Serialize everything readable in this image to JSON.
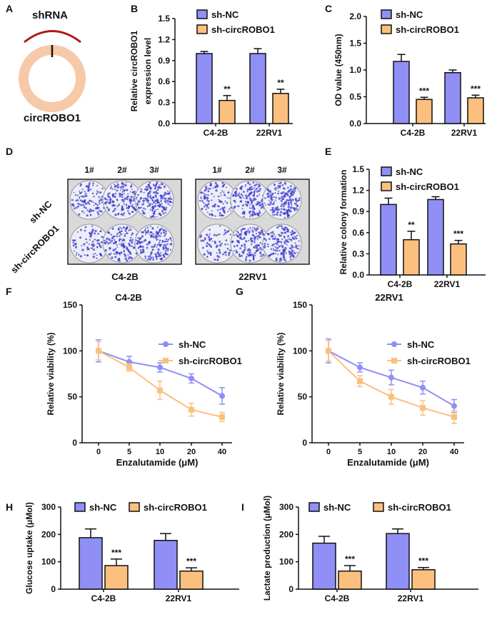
{
  "colors": {
    "sh_nc": "#8f8ff5",
    "sh_circ": "#fbc07e",
    "ring": "#f6c9a8",
    "arc": "#b01818",
    "stain": "#3a3ad0"
  },
  "panel_a": {
    "letter": "A",
    "label_top": "shRNA",
    "label_bottom": "circROBO1"
  },
  "panel_d": {
    "letter": "D",
    "columns": [
      "1#",
      "2#",
      "3#"
    ],
    "rows": [
      "sh-NC",
      "sh-circROBO1"
    ],
    "plates": [
      "C4-2B",
      "22RV1"
    ]
  },
  "chart_data": [
    {
      "id": "B",
      "letter": "B",
      "type": "bar",
      "categories": [
        "C4-2B",
        "22RV1"
      ],
      "ylabel": [
        "Relative circROBO1",
        "expression level"
      ],
      "ylim": [
        0,
        1.5
      ],
      "yticks": [
        "0.0",
        "0.3",
        "0.6",
        "0.9",
        "1.2",
        "1.5"
      ],
      "tickvals": [
        0,
        0.3,
        0.6,
        0.9,
        1.2,
        1.5
      ],
      "series": [
        {
          "name": "sh-NC",
          "values": [
            1.0,
            1.0
          ],
          "errors": [
            0.03,
            0.07
          ]
        },
        {
          "name": "sh-circROBO1",
          "values": [
            0.33,
            0.43
          ],
          "errors": [
            0.07,
            0.06
          ],
          "significance": [
            "**",
            "**"
          ]
        }
      ]
    },
    {
      "id": "C",
      "letter": "C",
      "type": "bar",
      "categories": [
        "C4-2B",
        "22RV1"
      ],
      "ylabel": [
        "OD value (450nm)"
      ],
      "ylim": [
        0,
        2.0
      ],
      "yticks": [
        "0.0",
        "0.5",
        "1.0",
        "1.5",
        "2.0"
      ],
      "tickvals": [
        0,
        0.5,
        1.0,
        1.5,
        2.0
      ],
      "series": [
        {
          "name": "sh-NC",
          "values": [
            1.16,
            0.95
          ],
          "errors": [
            0.13,
            0.05
          ]
        },
        {
          "name": "sh-circROBO1",
          "values": [
            0.45,
            0.48
          ],
          "errors": [
            0.04,
            0.05
          ],
          "significance": [
            "***",
            "***"
          ]
        }
      ]
    },
    {
      "id": "E",
      "letter": "E",
      "type": "bar",
      "categories": [
        "C4-2B",
        "22RV1"
      ],
      "ylabel": [
        "Relative colony formation"
      ],
      "ylim": [
        0,
        1.5
      ],
      "yticks": [
        "0.0",
        "0.3",
        "0.6",
        "0.9",
        "1.2",
        "1.5"
      ],
      "tickvals": [
        0,
        0.3,
        0.6,
        0.9,
        1.2,
        1.5
      ],
      "series": [
        {
          "name": "sh-NC",
          "values": [
            1.0,
            1.07
          ],
          "errors": [
            0.09,
            0.04
          ]
        },
        {
          "name": "sh-circROBO1",
          "values": [
            0.5,
            0.44
          ],
          "errors": [
            0.12,
            0.05
          ],
          "significance": [
            "**",
            "***"
          ]
        }
      ]
    },
    {
      "id": "F",
      "letter": "F",
      "type": "line",
      "title": "C4-2B",
      "categories": [
        "0",
        "5",
        "10",
        "20",
        "40"
      ],
      "xlabel": "Enzalutamide (μM)",
      "ylabel": [
        "Relative viability (%)"
      ],
      "ylim": [
        0,
        150
      ],
      "yticks": [
        "0",
        "50",
        "100",
        "150"
      ],
      "tickvals": [
        0,
        50,
        100,
        150
      ],
      "series": [
        {
          "name": "sh-NC",
          "values": [
            100,
            88,
            82,
            70,
            51
          ],
          "errors": [
            12,
            6,
            5,
            5,
            9
          ]
        },
        {
          "name": "sh-circROBO1",
          "values": [
            100,
            82,
            57,
            36,
            28
          ],
          "errors": [
            10,
            4,
            10,
            7,
            5
          ]
        }
      ]
    },
    {
      "id": "G",
      "letter": "G",
      "type": "line",
      "title": "22RV1",
      "categories": [
        "0",
        "5",
        "10",
        "20",
        "40"
      ],
      "xlabel": "Enzalutamide (μM)",
      "ylabel": [
        "Relative viability (%)"
      ],
      "ylim": [
        0,
        150
      ],
      "yticks": [
        "0",
        "50",
        "100",
        "150"
      ],
      "tickvals": [
        0,
        50,
        100,
        150
      ],
      "series": [
        {
          "name": "sh-NC",
          "values": [
            100,
            82,
            71,
            60,
            40
          ],
          "errors": [
            13,
            5,
            8,
            7,
            7
          ]
        },
        {
          "name": "sh-circROBO1",
          "values": [
            100,
            67,
            50,
            38,
            28
          ],
          "errors": [
            11,
            6,
            8,
            8,
            7
          ]
        }
      ]
    },
    {
      "id": "H",
      "letter": "H",
      "type": "bar",
      "categories": [
        "C4-2B",
        "22RV1"
      ],
      "ylabel": [
        "Glucose uptake (μMol)"
      ],
      "ylim": [
        0,
        300
      ],
      "yticks": [
        "0",
        "100",
        "200",
        "300"
      ],
      "tickvals": [
        0,
        100,
        200,
        300
      ],
      "series": [
        {
          "name": "sh-NC",
          "values": [
            188,
            178
          ],
          "errors": [
            32,
            25
          ]
        },
        {
          "name": "sh-circROBO1",
          "values": [
            86,
            66
          ],
          "errors": [
            24,
            12
          ],
          "significance": [
            "***",
            "***"
          ]
        }
      ]
    },
    {
      "id": "I",
      "letter": "I",
      "type": "bar",
      "categories": [
        "C4-2B",
        "22RV1"
      ],
      "ylabel": [
        "Lactate production (μMol)"
      ],
      "ylim": [
        0,
        300
      ],
      "yticks": [
        "0",
        "100",
        "200",
        "300"
      ],
      "tickvals": [
        0,
        100,
        200,
        300
      ],
      "series": [
        {
          "name": "sh-NC",
          "values": [
            168,
            203
          ],
          "errors": [
            25,
            17
          ]
        },
        {
          "name": "sh-circROBO1",
          "values": [
            66,
            71
          ],
          "errors": [
            20,
            8
          ],
          "significance": [
            "***",
            "***"
          ]
        }
      ]
    }
  ]
}
